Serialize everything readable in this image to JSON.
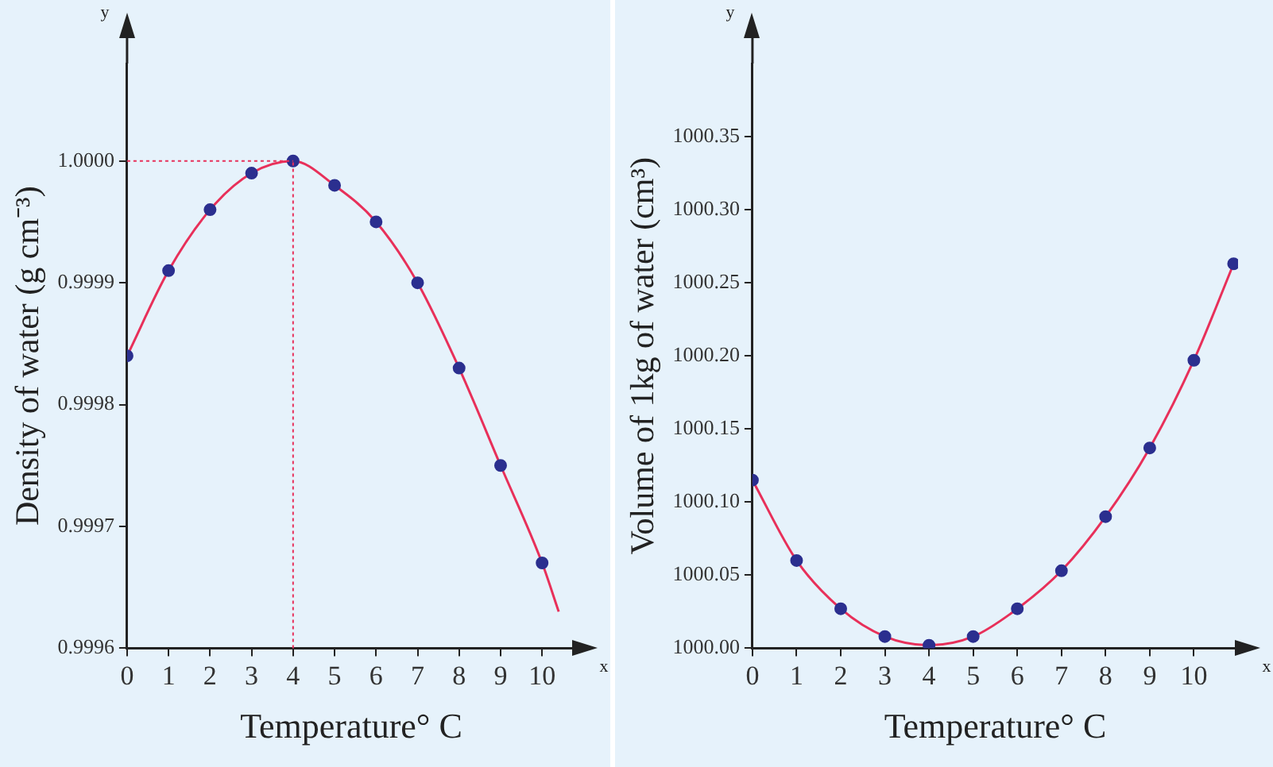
{
  "chart_data": [
    {
      "type": "scatter",
      "xlabel": "Temperature° C",
      "ylabel": "Density of water (g cm⁻³)",
      "annotations": [
        "y",
        "x"
      ],
      "x": [
        0,
        1,
        2,
        3,
        4,
        5,
        6,
        7,
        8,
        9,
        10
      ],
      "series": [
        {
          "type": "scatter",
          "color": "#2b2f8f",
          "marker": "circle",
          "values": [
            0.99984,
            0.99991,
            0.99996,
            0.99999,
            1.0,
            0.99998,
            0.99995,
            0.9999,
            0.99983,
            0.99975,
            0.99967
          ]
        },
        {
          "type": "line",
          "color": "#e8305a",
          "x": [
            0,
            1,
            2,
            3,
            4,
            5,
            6,
            7,
            8,
            9,
            10,
            10.4
          ],
          "values": [
            0.99984,
            0.99991,
            0.99996,
            0.99999,
            1.0,
            0.99998,
            0.99995,
            0.9999,
            0.99983,
            0.99975,
            0.99967,
            0.99963
          ]
        }
      ],
      "xlim": [
        0,
        10.8
      ],
      "xticks": [
        0,
        1,
        2,
        3,
        4,
        5,
        6,
        7,
        8,
        9,
        10
      ],
      "ylim": [
        0.9996,
        1.00008
      ],
      "yticks": [
        {
          "value": 0.9996,
          "label": "0.9996"
        },
        {
          "value": 0.9997,
          "label": "0.9997"
        },
        {
          "value": 0.9998,
          "label": "0.9998"
        },
        {
          "value": 0.9999,
          "label": "0.9999"
        },
        {
          "value": 1,
          "label": "1.0000"
        }
      ],
      "ref_lines": [
        {
          "axis": "y",
          "value": 1,
          "color": "#e8305a",
          "line_style": "dotted"
        },
        {
          "axis": "x",
          "value": 4,
          "color": "#e8305a",
          "line_style": "dotted"
        }
      ],
      "grid": false,
      "legend": false
    },
    {
      "type": "scatter",
      "xlabel": "Temperature° C",
      "ylabel": "Volume of 1kg of water (cm³)",
      "annotations": [
        "y",
        "x"
      ],
      "x": [
        0,
        1,
        2,
        3,
        4,
        5,
        6,
        7,
        8,
        9,
        10,
        10.9
      ],
      "series": [
        {
          "type": "scatter",
          "color": "#2b2f8f",
          "marker": "circle",
          "values": [
            1000.115,
            1000.06,
            1000.027,
            1000.008,
            1000.002,
            1000.008,
            1000.027,
            1000.053,
            1000.09,
            1000.137,
            1000.197,
            1000.263
          ]
        },
        {
          "type": "line",
          "color": "#e8305a",
          "x": [
            0,
            1,
            2,
            3,
            4,
            5,
            6,
            7,
            8,
            9,
            10,
            10.9
          ],
          "values": [
            1000.115,
            1000.06,
            1000.027,
            1000.008,
            1000.002,
            1000.008,
            1000.027,
            1000.053,
            1000.09,
            1000.137,
            1000.197,
            1000.263
          ]
        }
      ],
      "xlim": [
        0,
        11
      ],
      "xticks": [
        0,
        1,
        2,
        3,
        4,
        5,
        6,
        7,
        8,
        9,
        10
      ],
      "ylim": [
        1000,
        1000.4
      ],
      "yticks": [
        {
          "value": 1000,
          "label": "1000.00"
        },
        {
          "value": 1000.05,
          "label": "1000.05"
        },
        {
          "value": 1000.1,
          "label": "1000.10"
        },
        {
          "value": 1000.15,
          "label": "1000.15"
        },
        {
          "value": 1000.2,
          "label": "1000.20"
        },
        {
          "value": 1000.25,
          "label": "1000.25"
        },
        {
          "value": 1000.3,
          "label": "1000.30"
        },
        {
          "value": 1000.35,
          "label": "1000.35"
        }
      ],
      "grid": false,
      "legend": false
    }
  ]
}
